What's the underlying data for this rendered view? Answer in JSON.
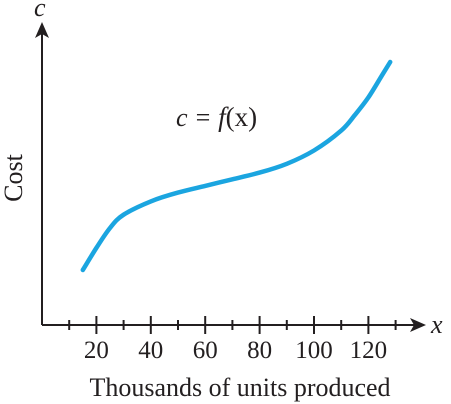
{
  "chart_data": {
    "type": "line",
    "title": "",
    "xlabel": "Thousands of units produced",
    "ylabel": "Cost",
    "x_axis_variable": "x",
    "y_axis_variable": "c",
    "x_ticks": [
      20,
      40,
      60,
      80,
      100,
      120
    ],
    "x_minor_ticks": [
      10,
      30,
      50,
      70,
      90,
      110,
      130
    ],
    "xlim": [
      0,
      137
    ],
    "y_ticks_shown": false,
    "grid": false,
    "annotation": {
      "prefix": "c = ",
      "func": "f",
      "arg": "(x)"
    },
    "series": [
      {
        "x": [
          15,
          20,
          25,
          30,
          40,
          50,
          60,
          70,
          80,
          90,
          100,
          110,
          115,
          120,
          125,
          128
        ],
        "y": [
          0.1,
          0.2,
          0.29,
          0.35,
          0.41,
          0.45,
          0.48,
          0.51,
          0.54,
          0.58,
          0.64,
          0.73,
          0.8,
          0.88,
          0.98,
          1.04
        ],
        "color": "#1ba5e0"
      }
    ]
  }
}
